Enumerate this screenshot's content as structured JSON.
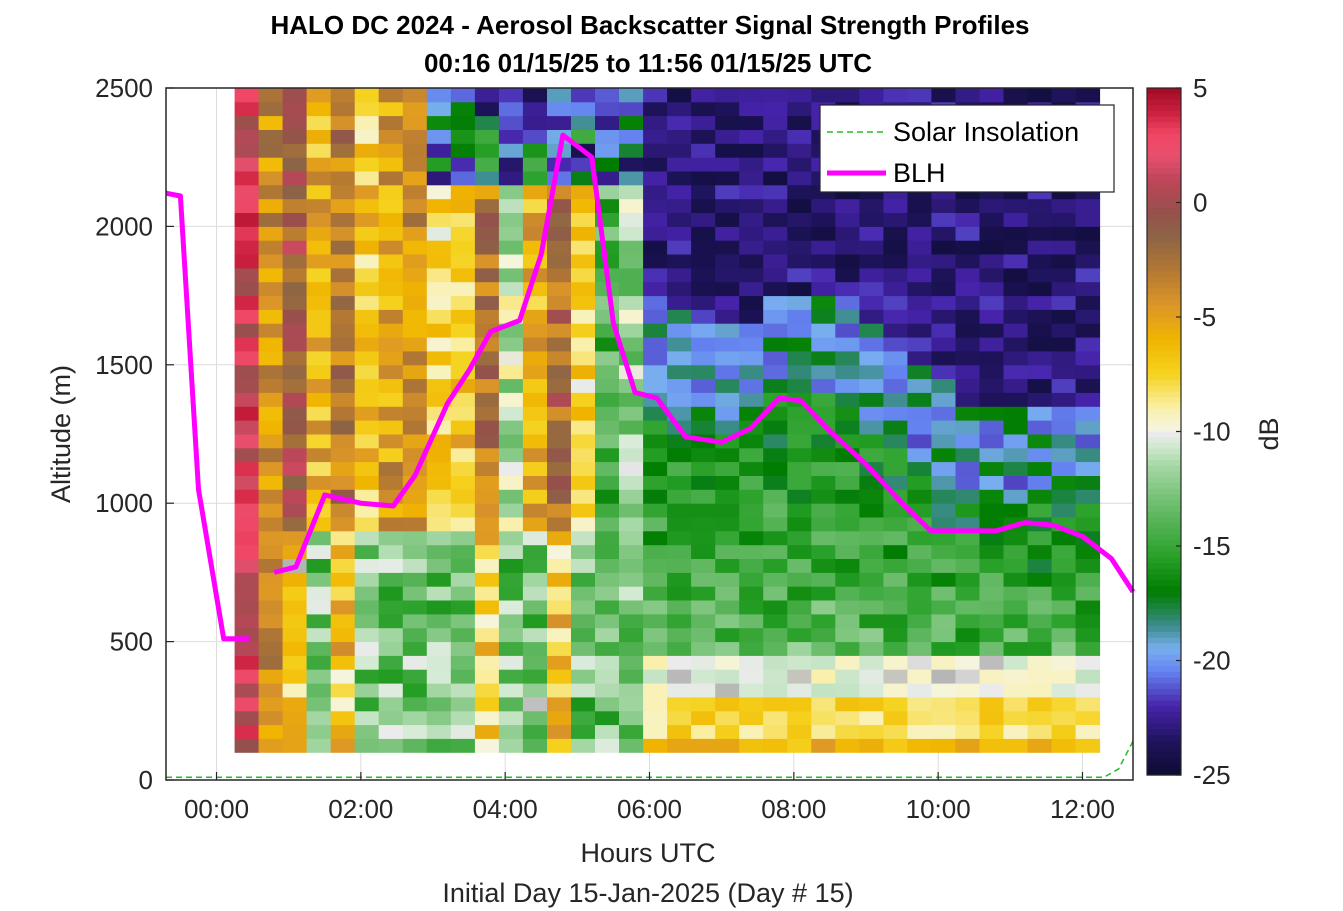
{
  "chart_data": {
    "type": "heatmap",
    "title": "HALO DC 2024 - Aerosol Backscatter Signal Strength Profiles",
    "subtitle": "00:16 01/15/25 to 11:56 01/15/25  UTC",
    "xlabel": "Hours UTC",
    "xlabel2": "Initial Day 15-Jan-2025 (Day # 15)",
    "ylabel": "Altitude (m)",
    "colorbar_label": "dB",
    "xlim": [
      -0.7,
      12.7
    ],
    "ylim": [
      0,
      2500
    ],
    "clim": [
      -25,
      5
    ],
    "x_ticks": [
      0,
      2,
      4,
      6,
      8,
      10,
      12
    ],
    "x_tick_labels": [
      "00:00",
      "02:00",
      "04:00",
      "06:00",
      "08:00",
      "10:00",
      "12:00"
    ],
    "y_ticks": [
      0,
      500,
      1000,
      1500,
      2000,
      2500
    ],
    "y_tick_labels": [
      "0",
      "500",
      "1000",
      "1500",
      "2000",
      "2500"
    ],
    "c_ticks": [
      5,
      0,
      -5,
      -10,
      -15,
      -20,
      -25
    ],
    "c_tick_labels": [
      "5",
      "0",
      "-5",
      "-10",
      "-15",
      "-20",
      "-25"
    ],
    "grid": true,
    "legend_position": "top-right",
    "legend": [
      "Solar Insolation",
      "BLH"
    ],
    "colors": {
      "blh": "#ff00ff",
      "solar": "#22bb22",
      "axis": "#262626",
      "grid": "#dcdcdc"
    },
    "heatmap": {
      "x_start": 0.25,
      "x_step": 0.333,
      "n_cols": 36,
      "y_start": 100,
      "y_step": 50,
      "n_rows": 48
    },
    "series": [
      {
        "name": "BLH",
        "x": [
          -0.7,
          -0.5,
          -0.25,
          0.1,
          0.45,
          0.8,
          1.1,
          1.5,
          2.0,
          2.45,
          2.75,
          3.2,
          3.5,
          3.8,
          4.2,
          4.5,
          4.8,
          5.2,
          5.5,
          5.8,
          6.1,
          6.5,
          7.0,
          7.4,
          7.8,
          8.1,
          8.5,
          9.0,
          9.5,
          9.9,
          10.4,
          10.8,
          11.2,
          11.6,
          12.0,
          12.4,
          12.7
        ],
        "y": [
          2120,
          2110,
          1050,
          510,
          510,
          750,
          770,
          1030,
          1000,
          990,
          1100,
          1360,
          1480,
          1620,
          1660,
          1900,
          2330,
          2250,
          1650,
          1400,
          1380,
          1240,
          1220,
          1270,
          1380,
          1370,
          1260,
          1140,
          1000,
          900,
          900,
          900,
          930,
          920,
          880,
          800,
          680
        ]
      },
      {
        "name": "Solar Insolation",
        "x": [
          -0.7,
          12.3,
          12.5,
          12.7
        ],
        "y": [
          10,
          10,
          40,
          140
        ]
      }
    ]
  }
}
